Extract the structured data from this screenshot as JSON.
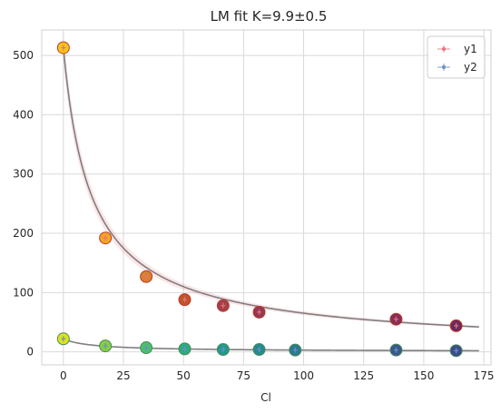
{
  "chart_data": {
    "type": "scatter",
    "title": "LM fit K=9.9±0.5",
    "xlabel": "Cl",
    "ylabel": "",
    "xlim": [
      -9,
      178
    ],
    "ylim": [
      -22,
      543
    ],
    "xticks": [
      0,
      25,
      50,
      75,
      100,
      125,
      150,
      175
    ],
    "yticks": [
      0,
      100,
      200,
      300,
      400,
      500
    ],
    "xtick_labels": [
      "0",
      "25",
      "50",
      "75",
      "100",
      "125",
      "150",
      "175"
    ],
    "ytick_labels": [
      "0",
      "100",
      "200",
      "300",
      "400",
      "500"
    ],
    "grid": true,
    "legend_position": "top-right",
    "style": "whitegrid",
    "series": [
      {
        "name": "y1",
        "color": "#e8717a",
        "x": [
          0,
          17.5,
          34.5,
          50.5,
          66.5,
          81.5,
          138.5,
          163.5
        ],
        "y": [
          513,
          192,
          127,
          88,
          78,
          67,
          55,
          44
        ],
        "marker_colors": [
          "#f5c518",
          "#f5a623",
          "#d7822d",
          "#c0532b",
          "#a43f4a",
          "#953751",
          "#862e56",
          "#6c2a5e"
        ],
        "marker_edge": "#c0392b",
        "fit": {
          "model": "A/(1+K*x/1000)^alpha",
          "x_max": 173
        }
      },
      {
        "name": "y2",
        "color": "#6a8fc8",
        "x": [
          0,
          17.5,
          34.5,
          50.5,
          66.5,
          81.5,
          96.5,
          138.5,
          163.5
        ],
        "y": [
          22,
          10,
          7,
          5,
          4,
          4,
          3,
          3,
          2
        ],
        "marker_colors": [
          "#dde318",
          "#86cd45",
          "#4cbf6c",
          "#2eaa7f",
          "#23998b",
          "#268a8c",
          "#2b7b8d",
          "#37598c",
          "#3a4c8a"
        ],
        "marker_edge": "#4a8a5a",
        "fit": {
          "model": "A/(1+K*x/1000)^alpha",
          "x_max": 173
        }
      }
    ]
  }
}
